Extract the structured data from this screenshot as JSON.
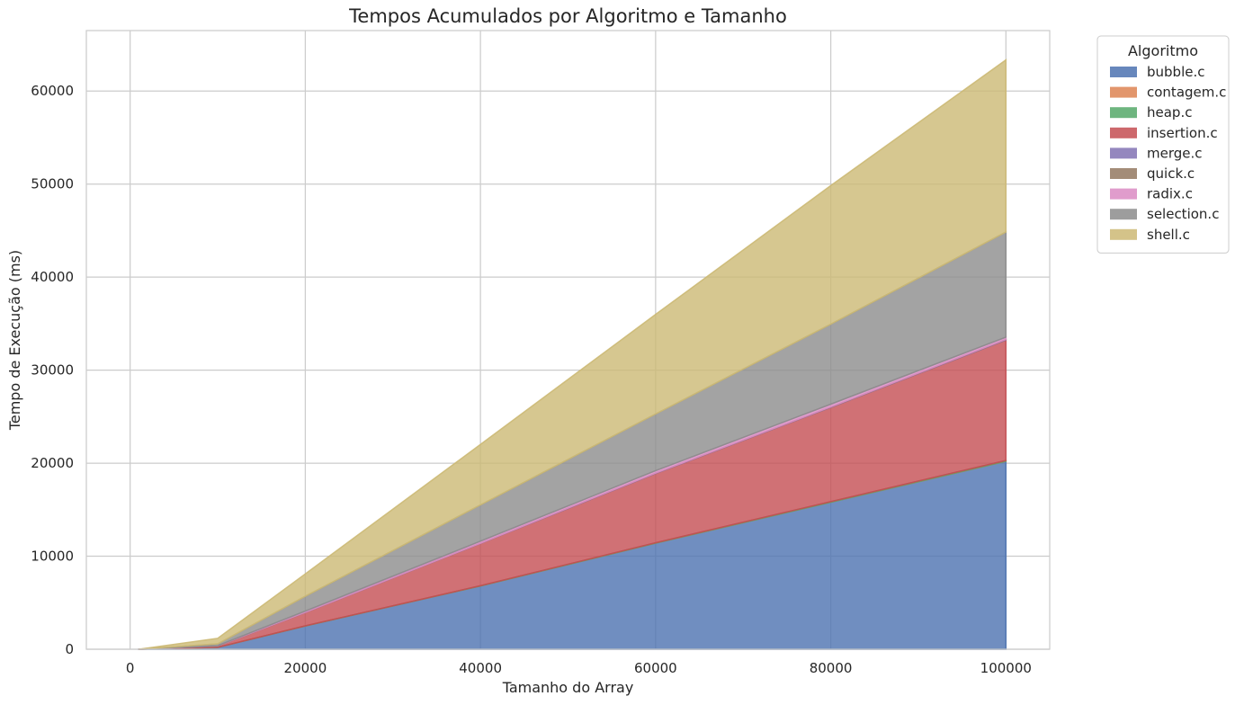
{
  "chart_data": {
    "type": "area",
    "stacked": true,
    "title": "Tempos Acumulados por Algoritmo e Tamanho",
    "xlabel": "Tamanho do Array",
    "ylabel": "Tempo de Execução (ms)",
    "x": [
      1000,
      10000,
      20000,
      40000,
      60000,
      80000,
      100000
    ],
    "xlim": [
      -5000,
      105000
    ],
    "ylim": [
      0,
      66500
    ],
    "xticks": [
      0,
      20000,
      40000,
      60000,
      80000,
      100000
    ],
    "yticks": [
      0,
      10000,
      20000,
      30000,
      40000,
      50000,
      60000
    ],
    "grid": true,
    "legend": {
      "title": "Algoritmo",
      "placement": "outside-top-right"
    },
    "series": [
      {
        "name": "bubble.c",
        "color": "#4c72b0",
        "values": [
          2,
          200,
          2500,
          6800,
          11400,
          15800,
          20200
        ]
      },
      {
        "name": "contagem.c",
        "color": "#dd8452",
        "values": [
          0,
          1,
          2,
          3,
          4,
          5,
          6
        ]
      },
      {
        "name": "heap.c",
        "color": "#55a868",
        "values": [
          0,
          3,
          8,
          20,
          40,
          60,
          80
        ]
      },
      {
        "name": "insertion.c",
        "color": "#c44e52",
        "values": [
          1,
          150,
          1450,
          4550,
          7450,
          10130,
          12950
        ]
      },
      {
        "name": "merge.c",
        "color": "#8172b3",
        "values": [
          0,
          2,
          5,
          10,
          20,
          25,
          35
        ]
      },
      {
        "name": "quick.c",
        "color": "#937860",
        "values": [
          0,
          2,
          5,
          10,
          15,
          20,
          25
        ]
      },
      {
        "name": "radix.c",
        "color": "#da8bc3",
        "values": [
          0,
          20,
          130,
          220,
          260,
          300,
          250
        ]
      },
      {
        "name": "selection.c",
        "color": "#8c8c8c",
        "values": [
          1,
          200,
          1600,
          3900,
          6100,
          8600,
          11300
        ]
      },
      {
        "name": "shell.c",
        "color": "#ccb974",
        "values": [
          0,
          600,
          2400,
          6500,
          10700,
          14900,
          18500
        ]
      }
    ]
  }
}
